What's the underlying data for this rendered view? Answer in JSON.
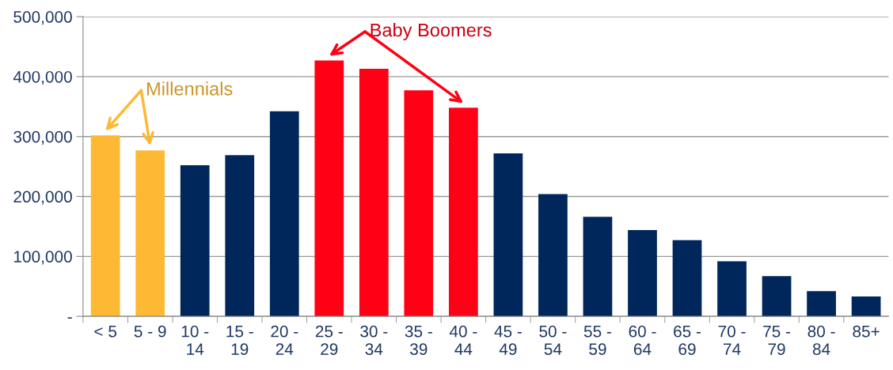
{
  "chart_data": {
    "type": "bar",
    "categories": [
      "< 5",
      "5 - 9",
      "10 -\n14",
      "15 -\n19",
      "20 -\n24",
      "25 -\n29",
      "30 -\n34",
      "35 -\n39",
      "40 -\n44",
      "45 -\n49",
      "50 -\n54",
      "55 -\n59",
      "60 -\n64",
      "65 -\n69",
      "70 -\n74",
      "75 -\n79",
      "80 -\n84",
      "85+"
    ],
    "values": [
      302000,
      277000,
      252000,
      269000,
      342000,
      427000,
      413000,
      377000,
      348000,
      272000,
      204000,
      166000,
      144000,
      127000,
      92000,
      67000,
      42000,
      33000
    ],
    "colors": [
      "#fdb933",
      "#fdb933",
      "#00275c",
      "#00275c",
      "#00275c",
      "#ff0015",
      "#ff0015",
      "#ff0015",
      "#ff0015",
      "#00275c",
      "#00275c",
      "#00275c",
      "#00275c",
      "#00275c",
      "#00275c",
      "#00275c",
      "#00275c",
      "#00275c"
    ],
    "ylim": [
      0,
      500000
    ],
    "yticks": [
      {
        "value": 0,
        "label": "-"
      },
      {
        "value": 100000,
        "label": "100,000"
      },
      {
        "value": 200000,
        "label": "200,000"
      },
      {
        "value": 300000,
        "label": "300,000"
      },
      {
        "value": 400000,
        "label": "400,000"
      },
      {
        "value": 500000,
        "label": "500,000"
      }
    ],
    "grid": "y",
    "annotations": [
      "Millennials",
      "Baby Boomers"
    ]
  }
}
